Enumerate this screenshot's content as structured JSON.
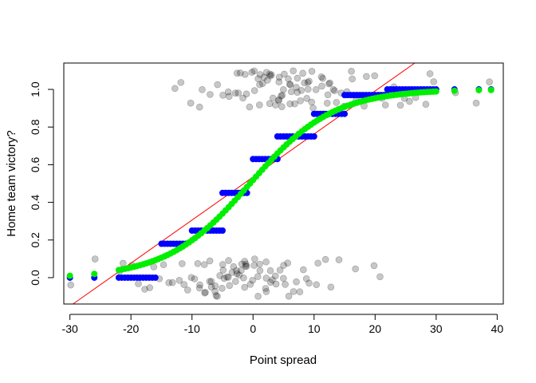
{
  "chart_data": {
    "type": "scatter",
    "title": "",
    "xlabel": "Point spread",
    "ylabel": "Home team victory?",
    "xlim": [
      -31,
      41
    ],
    "ylim": [
      -0.14,
      1.14
    ],
    "xticks": [
      -30,
      -20,
      -10,
      0,
      10,
      20,
      30,
      40
    ],
    "yticks": [
      0.0,
      0.2,
      0.4,
      0.6,
      0.8,
      1.0
    ],
    "xtick_labels": [
      "-30",
      "-20",
      "-10",
      "0",
      "10",
      "20",
      "30",
      "40"
    ],
    "ytick_labels": [
      "0.0",
      "0.2",
      "0.4",
      "0.6",
      "0.8",
      "1.0"
    ],
    "grid": false,
    "legend": "none",
    "colors": {
      "observed": "#00000040",
      "binned_fit": "#0000ff",
      "logistic_fit": "#00ee00",
      "linear_fit": "#ff0000"
    },
    "series": [
      {
        "role": "observed",
        "style": "jittered-points",
        "groups": [
          {
            "y": 0,
            "x": [
              -30,
              -26,
              -22,
              -21,
              -20,
              -19,
              -18,
              -17,
              -16,
              -15,
              -15,
              -14,
              -13,
              -12,
              -12,
              -11,
              -11,
              -10,
              -10,
              -9,
              -9,
              -9,
              -8,
              -8,
              -8,
              -7,
              -7,
              -7,
              -7,
              -6,
              -6,
              -6,
              -6,
              -5,
              -5,
              -5,
              -5,
              -5,
              -4,
              -4,
              -4,
              -4,
              -3,
              -3,
              -3,
              -3,
              -3,
              -2,
              -2,
              -2,
              -2,
              -1,
              -1,
              -1,
              -1,
              -1,
              0,
              0,
              0,
              0,
              1,
              1,
              1,
              1,
              2,
              2,
              2,
              2,
              3,
              3,
              3,
              4,
              4,
              4,
              5,
              5,
              5,
              6,
              6,
              7,
              7,
              8,
              8,
              9,
              9,
              10,
              11,
              12,
              13,
              14,
              17,
              20,
              21
            ]
          },
          {
            "y": 1,
            "x": [
              -13,
              -12,
              -10,
              -9,
              -8,
              -7,
              -6,
              -5,
              -4,
              -4,
              -3,
              -3,
              -2,
              -2,
              -2,
              -1,
              -1,
              -1,
              0,
              0,
              0,
              1,
              1,
              1,
              1,
              2,
              2,
              2,
              2,
              3,
              3,
              3,
              3,
              3,
              4,
              4,
              4,
              4,
              4,
              5,
              5,
              5,
              5,
              5,
              6,
              6,
              6,
              6,
              6,
              7,
              7,
              7,
              7,
              7,
              8,
              8,
              8,
              8,
              9,
              9,
              9,
              9,
              10,
              10,
              10,
              10,
              11,
              11,
              11,
              12,
              12,
              12,
              13,
              13,
              13,
              14,
              14,
              15,
              15,
              16,
              16,
              17,
              18,
              19,
              20,
              21,
              22,
              23,
              24,
              25,
              26,
              27,
              28,
              29,
              30,
              33,
              37,
              39
            ]
          }
        ]
      },
      {
        "role": "binned_fit",
        "style": "step-points",
        "segments": [
          {
            "from": -30,
            "to": -30,
            "y": 0.0
          },
          {
            "from": -26,
            "to": -26,
            "y": 0.0
          },
          {
            "from": -22,
            "to": -16,
            "y": 0.0
          },
          {
            "from": -15,
            "to": -11,
            "y": 0.18
          },
          {
            "from": -10,
            "to": -5,
            "y": 0.25
          },
          {
            "from": -5,
            "to": -1,
            "y": 0.45
          },
          {
            "from": 0,
            "to": 4,
            "y": 0.63
          },
          {
            "from": 4,
            "to": 10,
            "y": 0.75
          },
          {
            "from": 10,
            "to": 15,
            "y": 0.87
          },
          {
            "from": 15,
            "to": 22,
            "y": 0.97
          },
          {
            "from": 22,
            "to": 30,
            "y": 1.0
          },
          {
            "from": 33,
            "to": 33,
            "y": 1.0
          },
          {
            "from": 37,
            "to": 37,
            "y": 1.0
          },
          {
            "from": 39,
            "to": 39,
            "y": 1.0
          }
        ]
      },
      {
        "role": "logistic_fit",
        "style": "curve-points",
        "center": -0.5,
        "scale": 6.8,
        "x_range": [
          -22,
          30
        ],
        "extra_x": [
          -30,
          -26,
          33,
          37,
          39
        ]
      },
      {
        "role": "linear_fit",
        "style": "line",
        "points": [
          [
            -29.5,
            -0.15
          ],
          [
            26.5,
            1.15
          ]
        ]
      }
    ]
  }
}
